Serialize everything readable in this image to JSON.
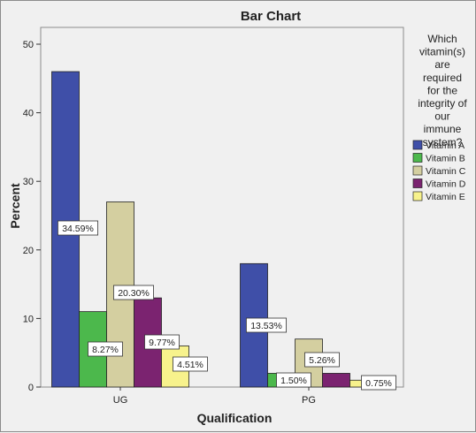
{
  "chart_data": {
    "type": "bar",
    "title": "Bar Chart",
    "xlabel": "Qualification",
    "ylabel": "Percent",
    "ylim": [
      0,
      50
    ],
    "yticks": [
      0,
      10,
      20,
      30,
      40,
      50
    ],
    "categories": [
      "UG",
      "PG"
    ],
    "legend_title": "Which vitamin(s) are required for the integrity of our immune system?",
    "legend_title_lines": [
      "Which",
      "vitamin(s)",
      "are",
      "required",
      "for the",
      "integrity of",
      "our",
      "immune",
      "system?"
    ],
    "legend_position": "right",
    "grid": false,
    "series": [
      {
        "name": "Vitamin A",
        "color": "#3f4fa8",
        "values": [
          46,
          18
        ],
        "labels": [
          "34.59%",
          "13.53%"
        ]
      },
      {
        "name": "Vitamin B",
        "color": "#4cb84c",
        "values": [
          11,
          2
        ],
        "labels": [
          "8.27%",
          "1.50%"
        ]
      },
      {
        "name": "Vitamin C",
        "color": "#d4cfa0",
        "values": [
          27,
          7
        ],
        "labels": [
          "20.30%",
          "5.26%"
        ]
      },
      {
        "name": "Vitamin D",
        "color": "#7b2370",
        "values": [
          13,
          2
        ],
        "labels": [
          "9.77%",
          ""
        ]
      },
      {
        "name": "Vitamin E",
        "color": "#f7f28c",
        "values": [
          6,
          1
        ],
        "labels": [
          "4.51%",
          "0.75%"
        ]
      }
    ]
  }
}
